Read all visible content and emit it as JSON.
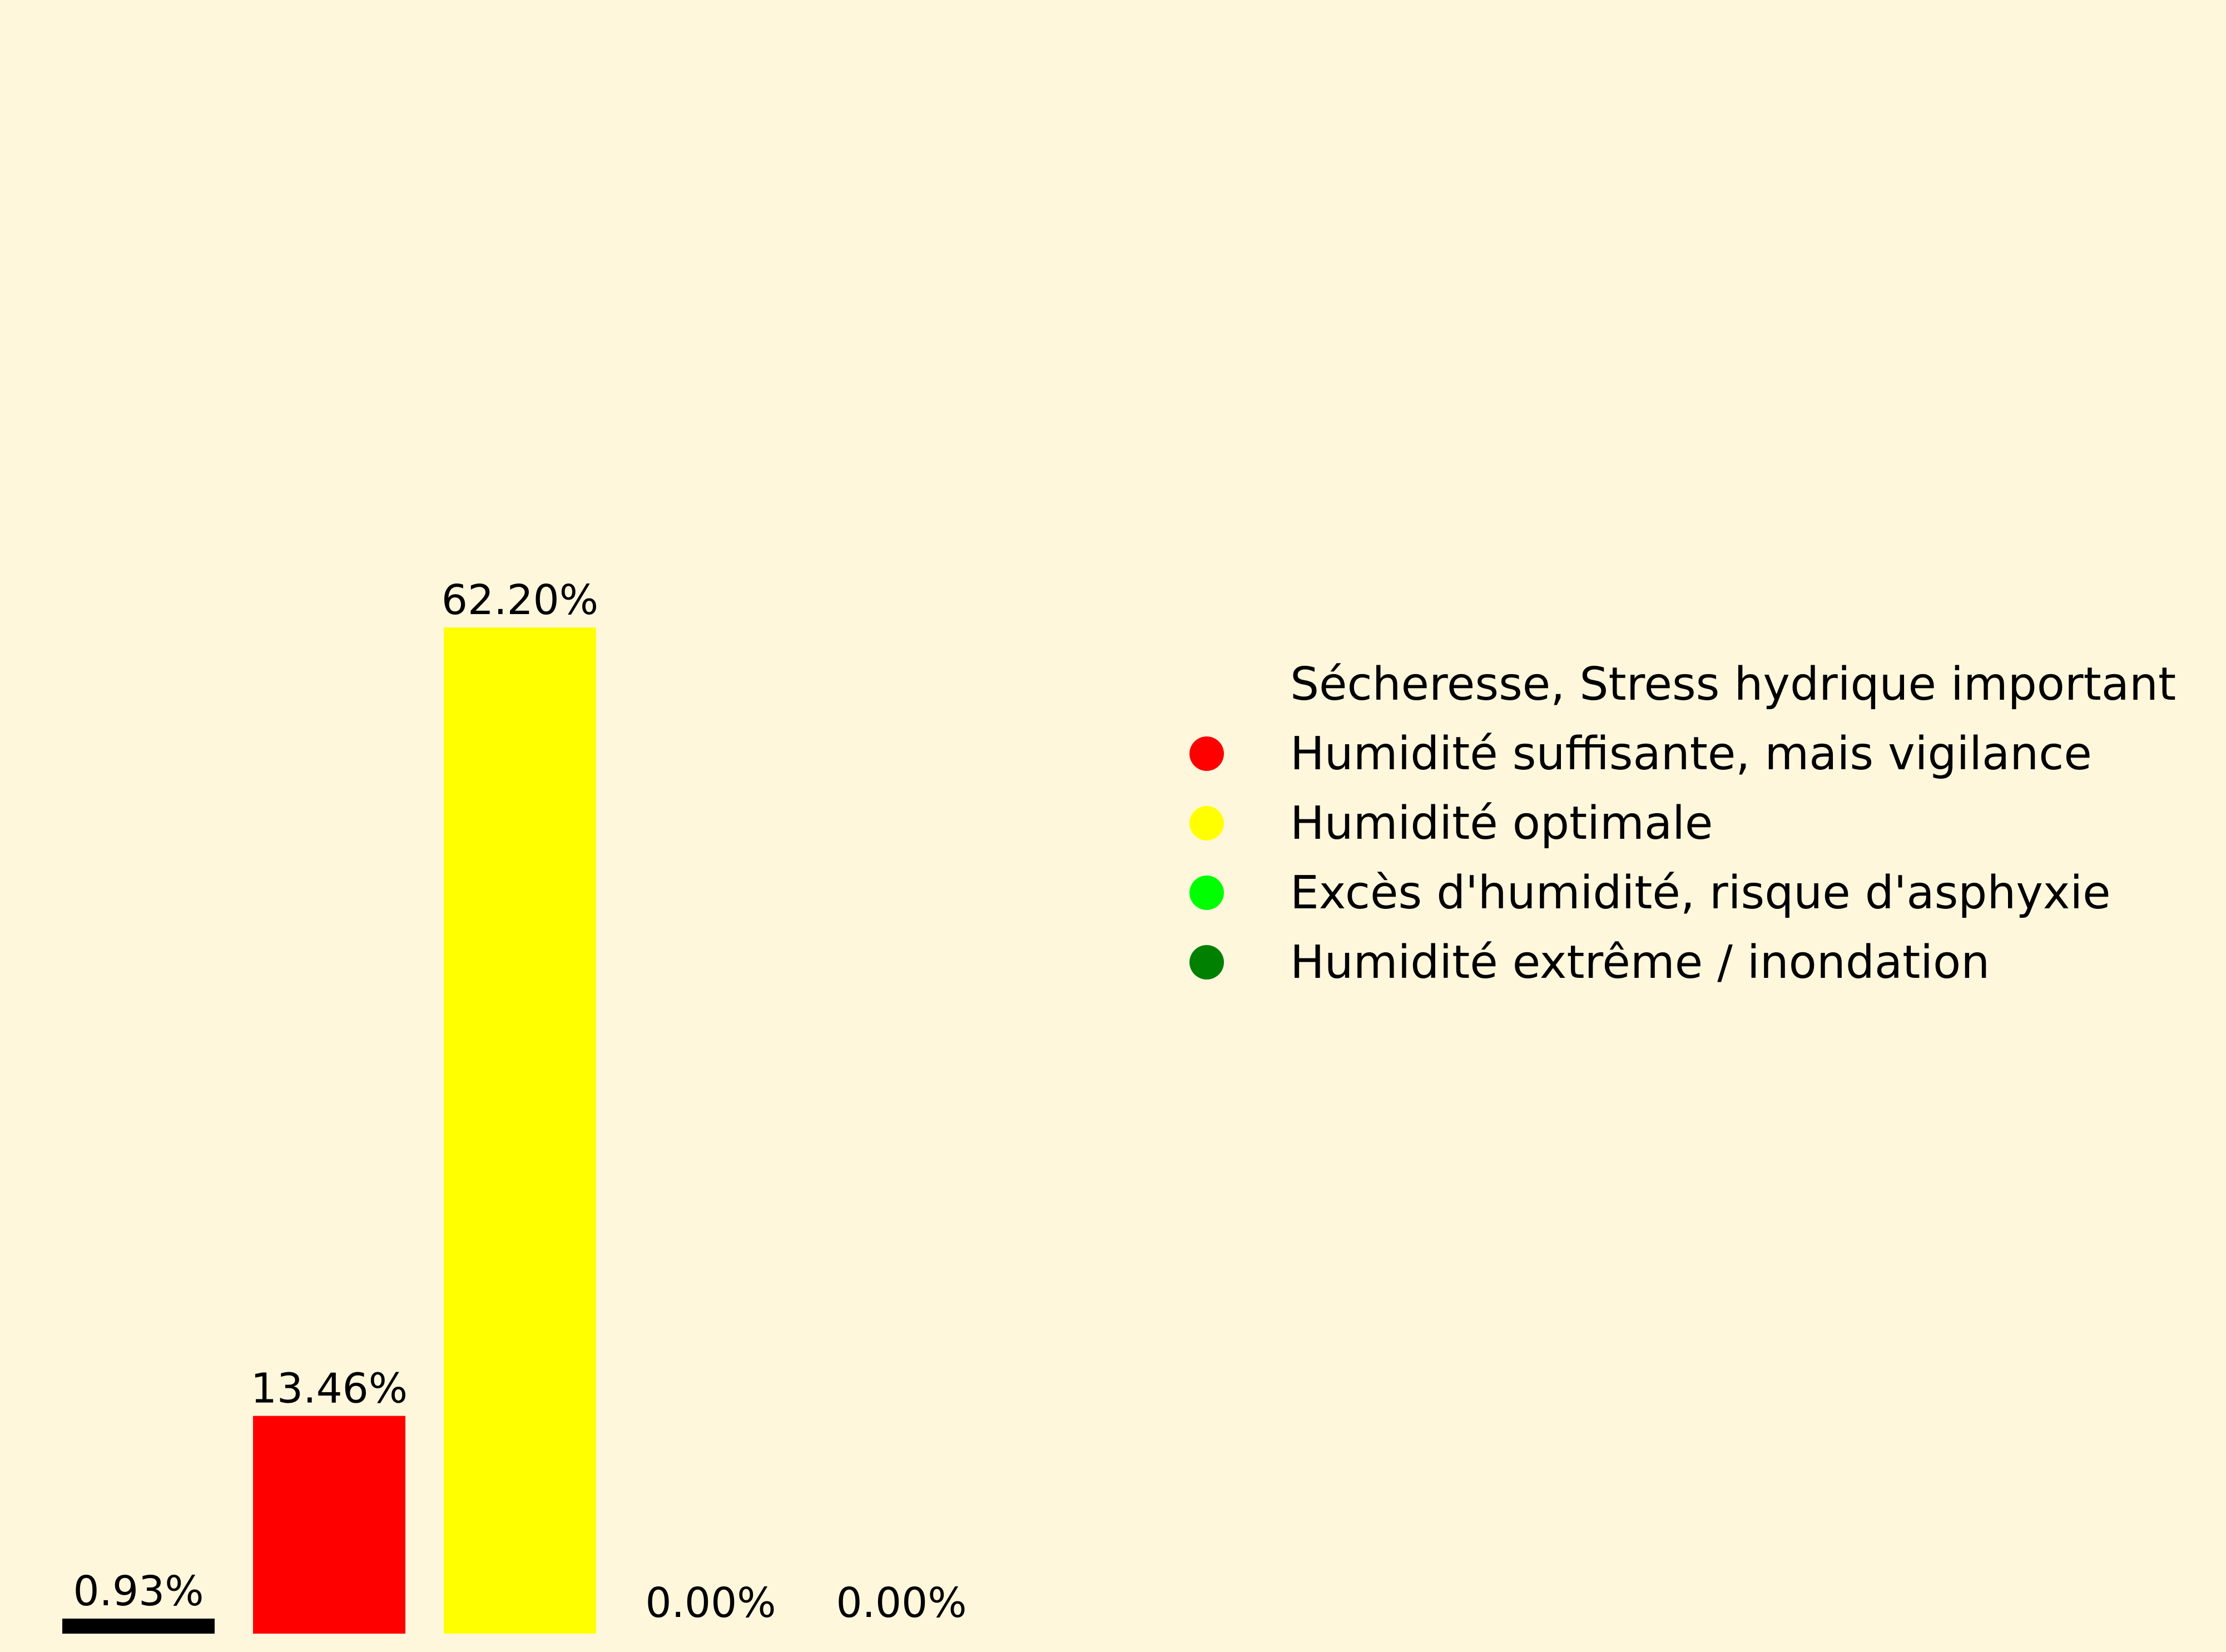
{
  "chart_data": {
    "type": "bar",
    "categories": [
      "Sécheresse, Stress hydrique important",
      "Humidité suffisante, mais vigilance",
      "Humidité optimale",
      "Excès d'humidité, risque d'asphyxie",
      "Humidité extrême / inondation"
    ],
    "values": [
      0.93,
      13.46,
      62.2,
      0.0,
      0.0
    ],
    "value_labels": [
      "0.93%",
      "13.46%",
      "62.20%",
      "0.00%",
      "0.00%"
    ],
    "colors": [
      "#000000",
      "#ff0000",
      "#ffff00",
      "#00ff00",
      "#008000"
    ],
    "ylim": [
      0,
      100
    ],
    "axes_visible": false,
    "grid": false,
    "legend_position": "center-right",
    "legend": [
      {
        "label": "Sécheresse, Stress hydrique important",
        "color": "#000000"
      },
      {
        "label": "Humidité suffisante, mais vigilance",
        "color": "#ff0000"
      },
      {
        "label": "Humidité optimale",
        "color": "#ffff00"
      },
      {
        "label": "Excès d'humidité, risque d'asphyxie",
        "color": "#00ff00"
      },
      {
        "label": "Humidité extrême / inondation",
        "color": "#008000"
      }
    ],
    "background": "#fef7dc"
  }
}
